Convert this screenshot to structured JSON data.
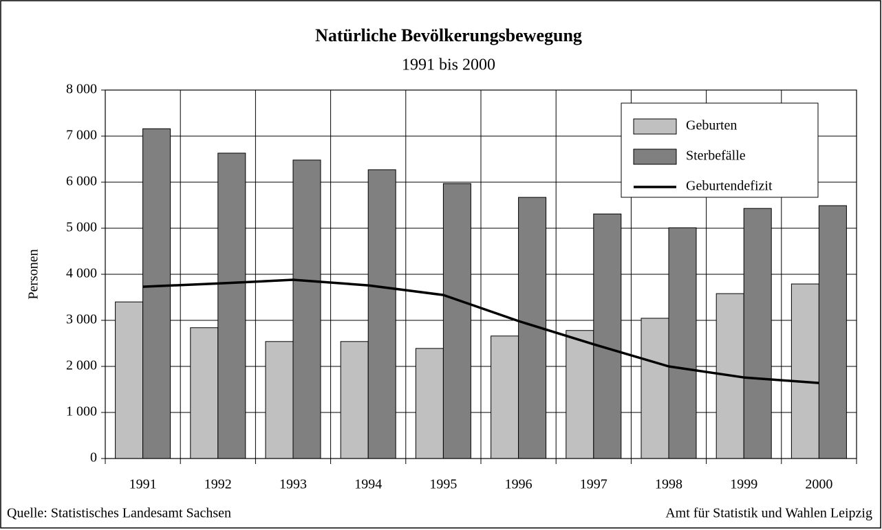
{
  "chart_data": {
    "type": "bar",
    "title": "Natürliche Bevölkerungsbewegung",
    "subtitle": "1991 bis 2000",
    "y_label": "Personen",
    "source": "Quelle: Statistisches Landesamt Sachsen",
    "publisher": "Amt für Statistik und Wahlen Leipzig",
    "categories": [
      "1991",
      "1992",
      "1993",
      "1994",
      "1995",
      "1996",
      "1997",
      "1998",
      "1999",
      "2000"
    ],
    "series": [
      {
        "name": "Geburten",
        "type": "bar",
        "color": "#c0c0c0",
        "values": [
          3400,
          2840,
          2540,
          2540,
          2390,
          2660,
          2780,
          3045,
          3580,
          3790
        ]
      },
      {
        "name": "Sterbefälle",
        "type": "bar",
        "color": "#808080",
        "values": [
          7160,
          6630,
          6480,
          6270,
          5970,
          5670,
          5310,
          5010,
          5430,
          5490
        ]
      },
      {
        "name": "Geburtendefizit",
        "type": "line",
        "color": "#000000",
        "values": [
          3730,
          3800,
          3880,
          3760,
          3550,
          2985,
          2480,
          2000,
          1760,
          1640
        ]
      }
    ],
    "ylim": [
      0,
      8000
    ],
    "yticks": [
      0,
      {
        "value": 1000,
        "label": "1 000"
      },
      {
        "value": 2000,
        "label": "2 000"
      },
      {
        "value": 3000,
        "label": "3 000"
      },
      {
        "value": 4000,
        "label": "4 000"
      },
      {
        "value": 5000,
        "label": "5 000"
      },
      {
        "value": 6000,
        "label": "6 000"
      },
      {
        "value": 7000,
        "label": "7 000"
      },
      {
        "value": 8000,
        "label": "8 000"
      }
    ],
    "grid": true,
    "legend": "top-right"
  }
}
